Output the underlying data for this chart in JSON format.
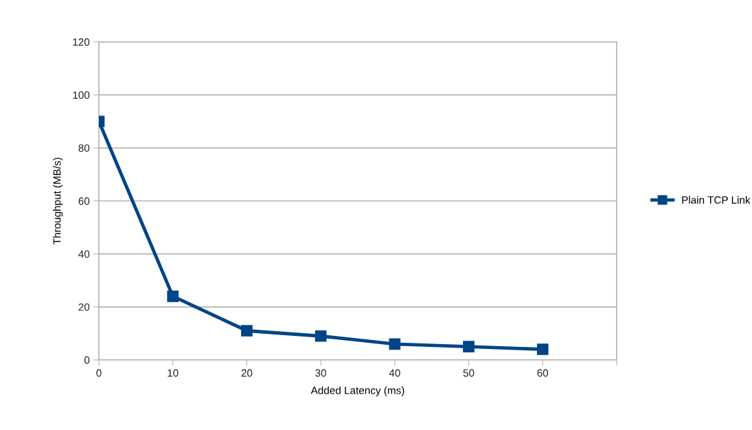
{
  "chart_data": {
    "type": "line",
    "xlabel": "Added Latency (ms)",
    "ylabel": "Throughput (MB/s)",
    "x": [
      0,
      10,
      20,
      30,
      40,
      50,
      60
    ],
    "series": [
      {
        "name": "Plain TCP Link",
        "color": "#004586",
        "values": [
          90,
          24,
          11,
          9,
          6,
          5,
          4
        ]
      }
    ],
    "xlim": [
      0,
      70
    ],
    "xticks": [
      0,
      10,
      20,
      30,
      40,
      50,
      60,
      {
        "value": 70,
        "label": null
      }
    ],
    "ylim": [
      0,
      120
    ],
    "yticks": [
      0,
      20,
      40,
      60,
      80,
      100,
      120
    ],
    "grid": "y",
    "legend": "right",
    "marker": "square",
    "line_style": "solid"
  }
}
